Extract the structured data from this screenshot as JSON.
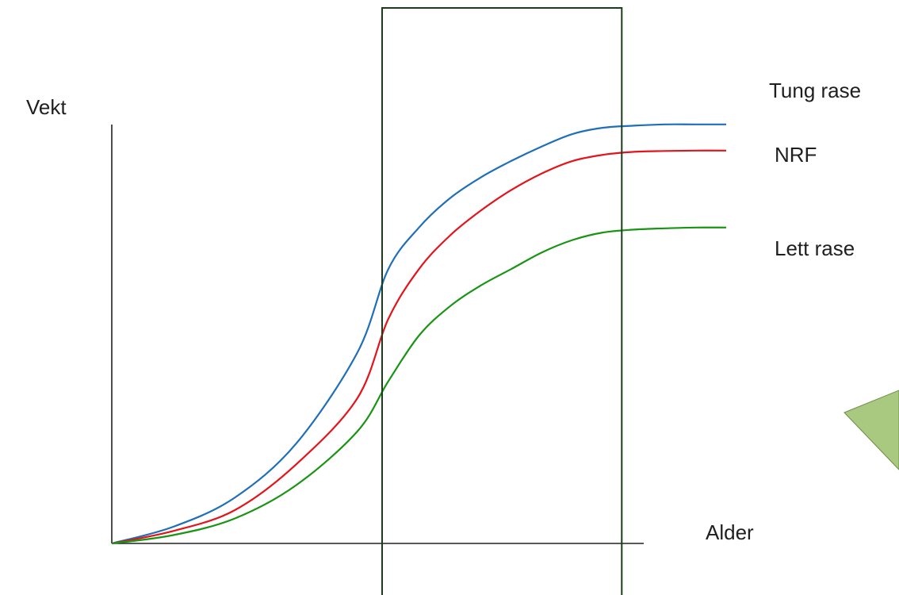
{
  "chart_data": {
    "type": "line",
    "title": "",
    "xlabel": "Alder",
    "ylabel": "Vekt",
    "grid": false,
    "xlim": [
      0,
      100
    ],
    "ylim": [
      0,
      100
    ],
    "x": [
      0,
      10,
      20,
      30,
      40,
      45,
      50,
      55,
      60,
      65,
      70,
      75,
      80,
      85,
      90,
      95,
      100
    ],
    "series": [
      {
        "name": "Tung rase",
        "color": "#1f6fb8",
        "values": [
          0,
          4,
          11,
          24,
          46,
          66,
          76,
          83,
          88,
          92,
          95.5,
          98.5,
          100,
          100.5,
          100.8,
          100.8,
          100.8
        ]
      },
      {
        "name": "NRF",
        "color": "#e3141b",
        "values": [
          0,
          3,
          8,
          19,
          35,
          54,
          66,
          74,
          80,
          85,
          89,
          92,
          93.5,
          94.2,
          94.4,
          94.5,
          94.5
        ]
      },
      {
        "name": "Lett rase",
        "color": "#1a9414",
        "values": [
          0,
          2,
          6,
          14,
          27,
          39,
          50,
          57,
          62,
          66,
          70,
          73,
          74.8,
          75.5,
          75.8,
          76,
          76
        ]
      }
    ],
    "highlight_window": {
      "x_start": 44,
      "x_end": 83,
      "color": "#1a3d1a"
    },
    "pointer_color": "#a9c980",
    "pointer_stroke": "#6b8f4a"
  }
}
